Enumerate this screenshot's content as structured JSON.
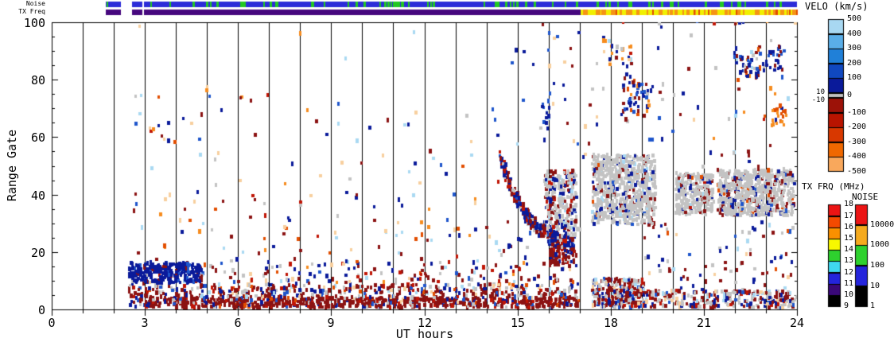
{
  "figure": {
    "kind": "SuperDARN radar range-time (RTI) summary plot",
    "background": "#ffffff",
    "frame_color": "#000000"
  },
  "strips": {
    "noise": {
      "label": "Noise",
      "base_color": "#2C2CD8",
      "mark_color": "#22C822",
      "segments_t": [
        [
          1.74,
          2.23
        ],
        [
          2.59,
          2.92
        ],
        [
          2.97,
          24.0
        ]
      ],
      "mark_count": 72
    },
    "txfreq": {
      "label": "TX Freq",
      "low_color": "#46077E",
      "high_color": "#F0F000",
      "mark_color": "#F59414",
      "mark2_color": "#E24E00",
      "segments_low_t": [
        [
          1.74,
          2.23
        ],
        [
          2.59,
          2.92
        ],
        [
          2.97,
          17.03
        ]
      ],
      "segments_high_t": [
        [
          17.03,
          24.0
        ]
      ],
      "mark_count": 52,
      "mark2_count": 10
    }
  },
  "colorbars": {
    "velo": {
      "title": "VELO (km/s)",
      "labels_right": [
        "500",
        "400",
        "300",
        "200",
        "100",
        "0",
        "-100",
        "-200",
        "-300",
        "-400",
        "-500"
      ],
      "labels_left": [
        "10",
        "-10"
      ],
      "pos_colors": [
        "#A8D8F2",
        "#5AAEE8",
        "#2080D8",
        "#1048C0",
        "#0A1A9A"
      ],
      "zero_color": "#C0C0C0",
      "neg_colors": [
        "#9C1208",
        "#B81400",
        "#D83800",
        "#F06800",
        "#F9A85C"
      ]
    },
    "txfrq": {
      "title": "TX FRQ (MHz)",
      "labels": [
        "18",
        "17",
        "16",
        "15",
        "14",
        "13",
        "12",
        "11",
        "10",
        "9"
      ],
      "colors": [
        "#EC1414",
        "#F44A00",
        "#FA9000",
        "#F8F800",
        "#2ED12E",
        "#3FD8F0",
        "#2424DC",
        "#3A0878",
        "#000000"
      ]
    },
    "noise": {
      "title": "NOISE",
      "labels": [
        "10000",
        "1000",
        "100",
        "10",
        "1"
      ],
      "colors": [
        "#EC1414",
        "#F5AA1E",
        "#2ED12E",
        "#2424DC",
        "#000000"
      ]
    }
  },
  "chart_data": {
    "type": "scatter",
    "subtype": "range-time-intensity",
    "xlabel": "UT hours",
    "ylabel": "Range Gate",
    "x_range": [
      0,
      24
    ],
    "y_range": [
      0,
      100
    ],
    "x_ticks": [
      0,
      3,
      6,
      9,
      12,
      15,
      18,
      21,
      24
    ],
    "y_ticks": [
      0,
      20,
      40,
      60,
      80,
      100
    ],
    "x_minor_step": 1,
    "y_minor_step": 5,
    "gridlines": "vertical line at every hour, full plot height",
    "legend_position": "right colorbars",
    "seed": 1234567,
    "point_palette": {
      "navy": "#0A1A9A",
      "blue": "#1E55CB",
      "medblue": "#3E8EDE",
      "skyblue": "#6FB7E8",
      "lightblue": "#A9D9F2",
      "gray": "#C3C3C3",
      "darkred": "#8B1212",
      "red": "#C01505",
      "orangered": "#E24E00",
      "orange": "#F68C1E",
      "peach": "#F8CF9E"
    },
    "regions": [
      {
        "id": "pre-burst",
        "t": [
          2.43,
          2.97
        ],
        "g": [
          0,
          8.5
        ],
        "n": 28,
        "palette": {
          "darkred": 45,
          "navy": 25,
          "gray": 12,
          "red": 8,
          "blue": 10
        }
      },
      {
        "id": "bottom-core-band",
        "t": [
          2.97,
          16.9
        ],
        "g": [
          0,
          3.5
        ],
        "n": 760,
        "palette": {
          "darkred": 70,
          "red": 9,
          "navy": 8,
          "blue": 4,
          "gray": 5,
          "peach": 2,
          "orangered": 2
        }
      },
      {
        "id": "bottom-upper-band",
        "t": [
          2.97,
          16.9
        ],
        "g": [
          3.5,
          8
        ],
        "n": 370,
        "palette": {
          "darkred": 42,
          "navy": 16,
          "gray": 14,
          "red": 7,
          "blue": 6,
          "lightblue": 5,
          "peach": 5,
          "orangered": 5
        }
      },
      {
        "id": "bottom-fringe",
        "t": [
          2.97,
          17.0
        ],
        "g": [
          8,
          16
        ],
        "n": 180,
        "palette": {
          "darkred": 30,
          "navy": 22,
          "gray": 14,
          "red": 8,
          "blue": 5,
          "lightblue": 6,
          "peach": 7,
          "orange": 4,
          "orangered": 4
        }
      },
      {
        "id": "morning-navy-blob",
        "t": [
          2.45,
          4.75
        ],
        "g": [
          8.6,
          15.5
        ],
        "n": 260,
        "palette": {
          "navy": 85,
          "blue": 6,
          "gray": 4,
          "darkred": 5
        }
      },
      {
        "id": "day-scatter-low",
        "t": [
          2.6,
          14.4
        ],
        "g": [
          16,
          40
        ],
        "n": 92,
        "palette": {
          "darkred": 20,
          "navy": 18,
          "orangered": 10,
          "orange": 8,
          "lightblue": 12,
          "peach": 12,
          "blue": 8,
          "gray": 7,
          "red": 5
        }
      },
      {
        "id": "day-scatter-mid",
        "t": [
          2.6,
          14.4
        ],
        "g": [
          40,
          75
        ],
        "n": 66,
        "palette": {
          "darkred": 18,
          "navy": 18,
          "orangered": 10,
          "orange": 8,
          "lightblue": 13,
          "peach": 13,
          "blue": 8,
          "gray": 7,
          "red": 5
        }
      },
      {
        "id": "day-scatter-high",
        "t": [
          2.6,
          14.4
        ],
        "g": [
          75,
          100
        ],
        "n": 6,
        "palette": {
          "lightblue": 40,
          "peach": 30,
          "navy": 15,
          "orange": 15
        }
      },
      {
        "id": "afternoon-scatter-high",
        "t": [
          14.4,
          17.05
        ],
        "g": [
          55,
          100
        ],
        "n": 24,
        "palette": {
          "navy": 30,
          "blue": 12,
          "orange": 12,
          "peach": 10,
          "lightblue": 12,
          "darkred": 14,
          "gray": 10
        }
      },
      {
        "id": "afternoon-scatter-low",
        "t": [
          14.4,
          17.0
        ],
        "g": [
          16,
          30
        ],
        "n": 26,
        "palette": {
          "darkred": 35,
          "navy": 30,
          "gray": 15,
          "red": 10,
          "blue": 10
        }
      },
      {
        "id": "groundscatter-blob-a",
        "t": [
          15.83,
          16.85
        ],
        "g": [
          24,
          47.5
        ],
        "n": 295,
        "palette": {
          "gray": 58,
          "navy": 20,
          "darkred": 13,
          "red": 4,
          "lightblue": 5
        }
      },
      {
        "id": "groundscatter-blob-b",
        "t": [
          17.37,
          19.4
        ],
        "g": [
          29,
          53
        ],
        "n": 710,
        "palette": {
          "gray": 80,
          "navy": 8,
          "darkred": 7,
          "blue": 2,
          "orangered": 1,
          "lightblue": 2
        }
      },
      {
        "id": "groundscatter-blob-c",
        "t": [
          20.05,
          21.25
        ],
        "g": [
          32.5,
          47
        ],
        "n": 275,
        "palette": {
          "gray": 82,
          "darkred": 8,
          "navy": 6,
          "red": 2,
          "lightblue": 2
        }
      },
      {
        "id": "groundscatter-blob-d",
        "t": [
          21.4,
          23.85
        ],
        "g": [
          32,
          48
        ],
        "n": 640,
        "palette": {
          "gray": 80,
          "darkred": 9,
          "navy": 7,
          "blue": 2,
          "orangered": 2
        }
      },
      {
        "id": "arc-red-tail",
        "t": [
          16.0,
          16.8
        ],
        "g": [
          15,
          23
        ],
        "n": 85,
        "palette": {
          "darkred": 75,
          "red": 10,
          "navy": 10,
          "gray": 5
        }
      },
      {
        "id": "post17-bottom-band",
        "t": [
          17.37,
          19.05
        ],
        "g": [
          0,
          10
        ],
        "n": 295,
        "palette": {
          "darkred": 40,
          "gray": 28,
          "navy": 12,
          "red": 6,
          "blue": 5,
          "lightblue": 4,
          "peach": 5
        }
      },
      {
        "id": "post19-bottom-band",
        "t": [
          19.05,
          23.95
        ],
        "g": [
          0,
          6
        ],
        "n": 275,
        "palette": {
          "darkred": 36,
          "gray": 30,
          "navy": 12,
          "red": 5,
          "blue": 6,
          "lightblue": 5,
          "peach": 6
        }
      },
      {
        "id": "post19-low-scatter",
        "t": [
          19.05,
          23.95
        ],
        "g": [
          6,
          30
        ],
        "n": 78,
        "palette": {
          "darkred": 30,
          "gray": 25,
          "navy": 20,
          "blue": 8,
          "lightblue": 7,
          "peach": 5,
          "orangered": 5
        }
      },
      {
        "id": "dusk-cluster-small",
        "t": [
          15.7,
          16.0
        ],
        "g": [
          58,
          77
        ],
        "n": 15,
        "palette": {
          "navy": 50,
          "blue": 20,
          "lightblue": 20,
          "darkred": 10
        }
      },
      {
        "id": "evening-f-cluster",
        "t": [
          18.3,
          19.2
        ],
        "g": [
          67,
          80
        ],
        "n": 48,
        "palette": {
          "navy": 50,
          "blue": 18,
          "orangered": 8,
          "orange": 12,
          "darkred": 8,
          "gray": 4
        }
      },
      {
        "id": "evening-f-cluster-top",
        "t": [
          18.3,
          18.75
        ],
        "g": [
          80,
          91
        ],
        "n": 12,
        "palette": {
          "orange": 40,
          "navy": 35,
          "gray": 15,
          "darkred": 10
        }
      },
      {
        "id": "evening-orange-high",
        "t": [
          17.6,
          18.25
        ],
        "g": [
          84,
          93
        ],
        "n": 10,
        "palette": {
          "orange": 40,
          "peach": 20,
          "navy": 30,
          "darkred": 10
        }
      },
      {
        "id": "night-scatter-high",
        "t": [
          17.05,
          23.9
        ],
        "g": [
          52,
          100
        ],
        "n": 82,
        "palette": {
          "navy": 22,
          "darkred": 18,
          "gray": 18,
          "lightblue": 10,
          "peach": 8,
          "orange": 8,
          "blue": 8,
          "orangered": 4,
          "red": 4
        }
      },
      {
        "id": "night-scatter-mid",
        "t": [
          19.4,
          23.95
        ],
        "g": [
          30,
          52
        ],
        "n": 22,
        "palette": {
          "gray": 40,
          "navy": 25,
          "darkred": 25,
          "orangered": 10
        }
      },
      {
        "id": "night-navy-cluster-1",
        "t": [
          21.95,
          22.8
        ],
        "g": [
          79,
          90
        ],
        "n": 44,
        "palette": {
          "navy": 45,
          "blue": 15,
          "darkred": 15,
          "gray": 15,
          "orangered": 5,
          "lightblue": 5
        }
      },
      {
        "id": "night-navy-cluster-2",
        "t": [
          22.85,
          23.55
        ],
        "g": [
          82,
          91
        ],
        "n": 26,
        "palette": {
          "navy": 60,
          "blue": 20,
          "darkred": 10,
          "gray": 10
        }
      },
      {
        "id": "night-orange-blob",
        "t": [
          23.15,
          23.65
        ],
        "g": [
          63,
          70
        ],
        "n": 20,
        "palette": {
          "orange": 45,
          "orangered": 30,
          "red": 15,
          "navy": 10
        }
      }
    ],
    "arcs": [
      {
        "id": "descending-echo-arc",
        "t": [
          14.4,
          16.75
        ],
        "g_base": 19,
        "amplitude": 34,
        "tau": 0.9,
        "jitter": 2.6,
        "n": 310,
        "palette": {
          "navy": 52,
          "darkred": 26,
          "red": 8,
          "gray": 8,
          "blue": 6
        }
      }
    ]
  }
}
